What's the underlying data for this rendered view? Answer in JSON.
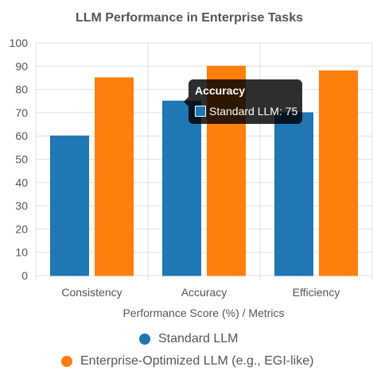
{
  "chart_data": {
    "type": "bar",
    "title": "LLM Performance in Enterprise Tasks",
    "categories": [
      "Consistency",
      "Accuracy",
      "Efficiency"
    ],
    "series": [
      {
        "name": "Standard LLM",
        "values": [
          60,
          75,
          70
        ],
        "color": "#1f77b4"
      },
      {
        "name": "Enterprise-Optimized LLM (e.g., EGI-like)",
        "values": [
          85,
          90,
          88
        ],
        "color": "#ff7f0e"
      }
    ],
    "xlabel": "Performance Score (%) / Metrics",
    "ylabel": "",
    "ylim": [
      0,
      100
    ],
    "yticks": [
      "0",
      "10",
      "20",
      "30",
      "40",
      "50",
      "60",
      "70",
      "80",
      "90",
      "100"
    ],
    "grid": true,
    "legend_position": "bottom"
  },
  "tooltip": {
    "title": "Accuracy",
    "label": "Standard LLM: 75"
  }
}
